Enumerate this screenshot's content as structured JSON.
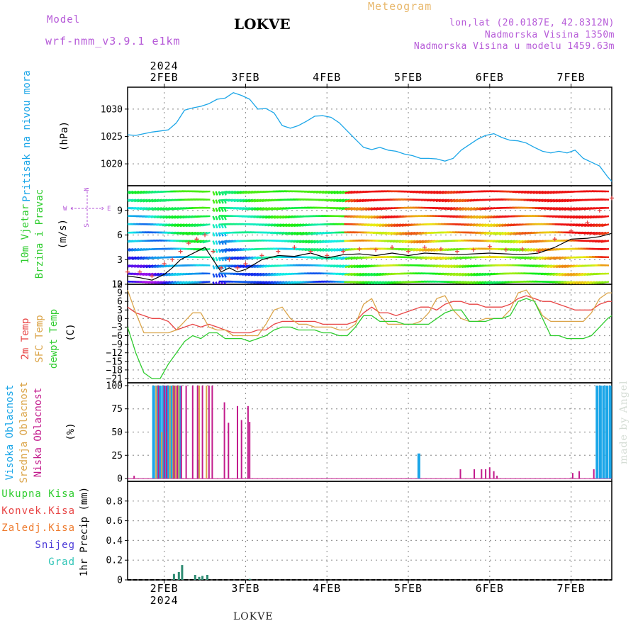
{
  "header": {
    "title": "LOKVE",
    "subtitle": "Meteogram",
    "model_label": "Model",
    "model_name": "wrf-nmm_v3.9.1 e1km",
    "lonlat": "lon,lat (20.0187E, 42.8312N)",
    "altitude": "Nadmorska Visina 1350m",
    "model_altitude": "Nadmorska Visina u modelu 1459.63m"
  },
  "footer": "LOKVE",
  "watermark": "made by Angel",
  "time_axis": {
    "year": "2024",
    "days": [
      "2FEB",
      "3FEB",
      "4FEB",
      "5FEB",
      "6FEB",
      "7FEB"
    ],
    "start_day": 1.55,
    "end_day": 7.5
  },
  "chart_data": [
    {
      "type": "line",
      "panel": "pressure",
      "ylabel": "(hPa)",
      "series_label": "Pritisak na nivou mora",
      "ylim": [
        1016,
        1034
      ],
      "yticks": [
        1020,
        1025,
        1030
      ],
      "color": "#1ba6e8",
      "series": [
        {
          "name": "Pritisak na nivou mora",
          "x": [
            1.55,
            1.65,
            1.75,
            1.85,
            1.95,
            2.05,
            2.15,
            2.25,
            2.35,
            2.45,
            2.55,
            2.65,
            2.75,
            2.85,
            2.95,
            3.05,
            3.15,
            3.25,
            3.35,
            3.45,
            3.55,
            3.65,
            3.75,
            3.85,
            3.95,
            4.05,
            4.15,
            4.25,
            4.35,
            4.45,
            4.55,
            4.65,
            4.75,
            4.85,
            4.95,
            5.05,
            5.15,
            5.25,
            5.35,
            5.45,
            5.55,
            5.65,
            5.75,
            5.85,
            5.95,
            6.05,
            6.15,
            6.25,
            6.35,
            6.45,
            6.55,
            6.65,
            6.75,
            6.85,
            6.95,
            7.05,
            7.15,
            7.25,
            7.35,
            7.45,
            7.5
          ],
          "values": [
            1025.3,
            1025.2,
            1025.5,
            1025.8,
            1026.0,
            1026.2,
            1027.5,
            1029.8,
            1030.2,
            1030.5,
            1031.0,
            1031.8,
            1032.0,
            1033.0,
            1032.5,
            1031.8,
            1030.0,
            1030.1,
            1029.3,
            1027.0,
            1026.5,
            1027.0,
            1027.8,
            1028.7,
            1028.8,
            1028.5,
            1027.5,
            1026.0,
            1024.5,
            1023.0,
            1022.6,
            1023.0,
            1022.5,
            1022.3,
            1021.8,
            1021.5,
            1021.0,
            1021.0,
            1020.9,
            1020.5,
            1021.0,
            1022.5,
            1023.5,
            1024.5,
            1025.2,
            1025.5,
            1024.8,
            1024.3,
            1024.2,
            1023.8,
            1023.0,
            1022.3,
            1022.0,
            1022.3,
            1022.0,
            1022.5,
            1021.0,
            1020.3,
            1019.6,
            1017.6,
            1016.8
          ]
        }
      ]
    },
    {
      "type": "line",
      "panel": "wind",
      "ylabel": "(m/s)",
      "series_label": [
        "10m Vjetar",
        "Brzina i Pravac"
      ],
      "compass": {
        "n": "N",
        "s": "S",
        "w": "W",
        "e": "E"
      },
      "ylim": [
        0,
        12
      ],
      "yticks": [
        0,
        3,
        6,
        9
      ],
      "series": [
        {
          "name": "speed",
          "x": [
            1.55,
            1.7,
            1.85,
            2.0,
            2.1,
            2.2,
            2.3,
            2.4,
            2.5,
            2.6,
            2.7,
            2.8,
            2.9,
            3.0,
            3.2,
            3.4,
            3.6,
            3.8,
            4.0,
            4.2,
            4.4,
            4.6,
            4.8,
            5.0,
            5.2,
            5.4,
            5.6,
            5.8,
            6.0,
            6.2,
            6.4,
            6.6,
            6.8,
            7.0,
            7.2,
            7.35,
            7.5
          ],
          "values": [
            1.0,
            0.8,
            0.5,
            1.2,
            2.0,
            3.0,
            3.5,
            4.0,
            4.5,
            3.0,
            1.5,
            2.0,
            1.5,
            1.8,
            3.0,
            3.5,
            3.4,
            3.8,
            3.2,
            3.6,
            3.7,
            3.5,
            3.8,
            3.5,
            3.8,
            3.7,
            3.6,
            3.7,
            3.8,
            3.7,
            3.6,
            3.8,
            4.5,
            5.5,
            5.6,
            5.8,
            6.2
          ]
        },
        {
          "name": "gust",
          "x": [
            1.55,
            1.7,
            1.85,
            2.0,
            2.1,
            2.2,
            2.3,
            2.4,
            2.5,
            2.6,
            2.7,
            2.8,
            2.9,
            3.0,
            3.2,
            3.4,
            3.6,
            3.8,
            4.0,
            4.2,
            4.4,
            4.6,
            4.8,
            5.0,
            5.2,
            5.4,
            5.6,
            5.8,
            6.0,
            6.2,
            6.4,
            6.6,
            6.8,
            7.0,
            7.2,
            7.35,
            7.5
          ],
          "values": [
            1.5,
            1.5,
            1.0,
            2.5,
            3.0,
            4.0,
            5.0,
            5.5,
            6.0,
            4.0,
            2.0,
            3.0,
            2.0,
            2.5,
            3.5,
            4.0,
            4.5,
            4.0,
            3.5,
            4.0,
            4.3,
            4.2,
            4.5,
            4.0,
            4.5,
            4.3,
            4.0,
            4.2,
            4.6,
            4.2,
            4.3,
            4.0,
            5.5,
            6.5,
            7.5,
            9.0,
            10.5
          ]
        }
      ]
    },
    {
      "type": "line",
      "panel": "temperature",
      "ylabel": "(C)",
      "series_label": [
        "2m Temp",
        "SFC Temp",
        "dewpt Temp"
      ],
      "ylim": [
        -22.5,
        12
      ],
      "yticks": [
        -21,
        -18,
        -15,
        -12,
        -9,
        -6,
        -3,
        0,
        3,
        6,
        9,
        12
      ],
      "series": [
        {
          "name": "2m Temp",
          "color": "#e84545",
          "x": [
            1.55,
            1.65,
            1.75,
            1.85,
            1.95,
            2.05,
            2.15,
            2.25,
            2.35,
            2.45,
            2.55,
            2.65,
            2.75,
            2.85,
            2.95,
            3.05,
            3.15,
            3.25,
            3.35,
            3.45,
            3.55,
            3.65,
            3.75,
            3.85,
            3.95,
            4.05,
            4.15,
            4.25,
            4.35,
            4.45,
            4.55,
            4.65,
            4.75,
            4.85,
            4.95,
            5.05,
            5.15,
            5.25,
            5.35,
            5.45,
            5.55,
            5.65,
            5.75,
            5.85,
            5.95,
            6.05,
            6.15,
            6.25,
            6.35,
            6.45,
            6.55,
            6.65,
            6.75,
            6.85,
            6.95,
            7.05,
            7.15,
            7.25,
            7.35,
            7.45,
            7.5
          ],
          "values": [
            4,
            2,
            1,
            0,
            0,
            -1,
            -4,
            -3,
            -2,
            -3,
            -2,
            -3,
            -4,
            -5,
            -5,
            -5,
            -4,
            -4,
            -2,
            -1,
            -1,
            -1,
            -1,
            -1,
            -2,
            -2,
            -2,
            -2,
            -1,
            2,
            4,
            2,
            2,
            1,
            2,
            3,
            4,
            4,
            3,
            5,
            6,
            6,
            5,
            5,
            4,
            4,
            4,
            5,
            7,
            8,
            7,
            6,
            6,
            5,
            4,
            3,
            3,
            3,
            5,
            6,
            6
          ]
        },
        {
          "name": "SFC Temp",
          "color": "#dba54a",
          "x": [
            1.55,
            1.65,
            1.75,
            1.85,
            1.95,
            2.05,
            2.15,
            2.25,
            2.35,
            2.45,
            2.55,
            2.65,
            2.75,
            2.85,
            2.95,
            3.05,
            3.15,
            3.25,
            3.35,
            3.45,
            3.55,
            3.65,
            3.75,
            3.85,
            3.95,
            4.05,
            4.15,
            4.25,
            4.35,
            4.45,
            4.55,
            4.65,
            4.75,
            4.85,
            4.95,
            5.05,
            5.15,
            5.25,
            5.35,
            5.45,
            5.55,
            5.65,
            5.75,
            5.85,
            5.95,
            6.05,
            6.15,
            6.25,
            6.35,
            6.45,
            6.55,
            6.65,
            6.75,
            6.85,
            6.95,
            7.05,
            7.15,
            7.25,
            7.35,
            7.45,
            7.5
          ],
          "values": [
            10,
            2,
            -5,
            -5,
            -5,
            -5,
            -4,
            -1,
            2,
            2,
            -3,
            -4,
            -4,
            -6,
            -6,
            -6,
            -6,
            -2,
            3,
            4,
            0,
            -2,
            -2,
            -3,
            -3,
            -3,
            -4,
            -4,
            -2,
            5,
            7,
            1,
            -2,
            -2,
            -2,
            -2,
            -1,
            2,
            7,
            8,
            3,
            0,
            -1,
            -1,
            0,
            0,
            0,
            3,
            9,
            10,
            6,
            1,
            -1,
            -1,
            -1,
            -1,
            -1,
            2,
            7,
            9,
            9
          ]
        },
        {
          "name": "dewpt Temp",
          "color": "#2ecc2e",
          "x": [
            1.55,
            1.65,
            1.75,
            1.85,
            1.95,
            2.05,
            2.15,
            2.25,
            2.35,
            2.45,
            2.55,
            2.65,
            2.75,
            2.85,
            2.95,
            3.05,
            3.15,
            3.25,
            3.35,
            3.45,
            3.55,
            3.65,
            3.75,
            3.85,
            3.95,
            4.05,
            4.15,
            4.25,
            4.35,
            4.45,
            4.55,
            4.65,
            4.75,
            4.85,
            4.95,
            5.05,
            5.15,
            5.25,
            5.35,
            5.45,
            5.55,
            5.65,
            5.75,
            5.85,
            5.95,
            6.05,
            6.15,
            6.25,
            6.35,
            6.45,
            6.55,
            6.65,
            6.75,
            6.85,
            6.95,
            7.05,
            7.15,
            7.25,
            7.35,
            7.45,
            7.5
          ],
          "values": [
            -3,
            -12,
            -19,
            -21,
            -21,
            -16,
            -12,
            -8,
            -6,
            -7,
            -5,
            -5,
            -7,
            -7,
            -7,
            -8,
            -7,
            -6,
            -4,
            -3,
            -3,
            -4,
            -4,
            -4,
            -5,
            -5,
            -6,
            -6,
            -3,
            1,
            1,
            -1,
            -1,
            -1,
            -2,
            -2,
            -2,
            -2,
            0,
            2,
            3,
            3,
            -1,
            -1,
            -1,
            0,
            0,
            1,
            6,
            7,
            6,
            0,
            -6,
            -6,
            -7,
            -7,
            -7,
            -6,
            -3,
            0,
            1
          ]
        }
      ]
    },
    {
      "type": "bar",
      "panel": "clouds",
      "ylabel": "(%)",
      "series_label": [
        "Visoka Oblacnost",
        "Srednja Oblacnost",
        "Niska Oblacnost"
      ],
      "ylim": [
        -3,
        103
      ],
      "yticks": [
        0,
        25,
        50,
        75,
        100
      ],
      "series": [
        {
          "name": "Visoka Oblacnost",
          "color": "#1ba6e8",
          "width": 4,
          "x": [
            1.87,
            1.91,
            1.95,
            1.99,
            2.01,
            2.05,
            2.09,
            2.13,
            2.17,
            2.2,
            2.42,
            5.13,
            7.32,
            7.36,
            7.4,
            7.44,
            7.48
          ],
          "values": [
            100,
            100,
            100,
            100,
            100,
            100,
            100,
            100,
            100,
            100,
            20,
            27,
            100,
            100,
            100,
            100,
            100
          ]
        },
        {
          "name": "Srednja Oblacnost",
          "color": "#dba54a",
          "width": 2,
          "x": [
            1.9,
            1.97,
            2.03,
            2.07,
            2.11,
            2.14,
            2.18,
            2.43,
            2.52
          ],
          "values": [
            100,
            50,
            50,
            100,
            100,
            100,
            100,
            100,
            100
          ]
        },
        {
          "name": "Niska Oblacnost",
          "color": "#c21a8c",
          "width": 2,
          "x": [
            1.63,
            1.93,
            2.0,
            2.03,
            2.12,
            2.16,
            2.21,
            2.27,
            2.35,
            2.41,
            2.47,
            2.55,
            2.59,
            2.74,
            2.79,
            2.9,
            2.95,
            3.03,
            3.05,
            5.64,
            5.81,
            5.9,
            5.95,
            6.0,
            6.05,
            6.09,
            7.02,
            7.1,
            7.28
          ],
          "values": [
            3,
            100,
            100,
            100,
            100,
            100,
            100,
            100,
            100,
            100,
            100,
            100,
            100,
            82,
            60,
            78,
            63,
            78,
            61,
            10,
            10,
            10,
            10,
            12,
            8,
            3,
            6,
            8,
            10
          ]
        }
      ]
    },
    {
      "type": "bar",
      "panel": "precip",
      "ylabel": "1hr Precip (mm)",
      "ylim": [
        0,
        1.0
      ],
      "yticks": [
        0,
        0.2,
        0.4,
        0.6,
        0.8
      ],
      "legend": [
        {
          "name": "Ukupna Kisa",
          "color": "#2ecc2e"
        },
        {
          "name": "Konvek.Kisa",
          "color": "#e84545"
        },
        {
          "name": "Zaledj.Kisa",
          "color": "#ee7a2c"
        },
        {
          "name": "Snijeg",
          "color": "#4b3ad8"
        },
        {
          "name": "Grad",
          "color": "#2ec4b6"
        }
      ],
      "series": [
        {
          "name": "Grad",
          "color": "#2e8b72",
          "x": [
            2.12,
            2.18,
            2.22,
            2.38,
            2.43,
            2.47,
            2.53,
            3.05
          ],
          "values": [
            0.06,
            0.08,
            0.15,
            0.05,
            0.03,
            0.04,
            0.05,
            0.01
          ]
        }
      ]
    }
  ]
}
